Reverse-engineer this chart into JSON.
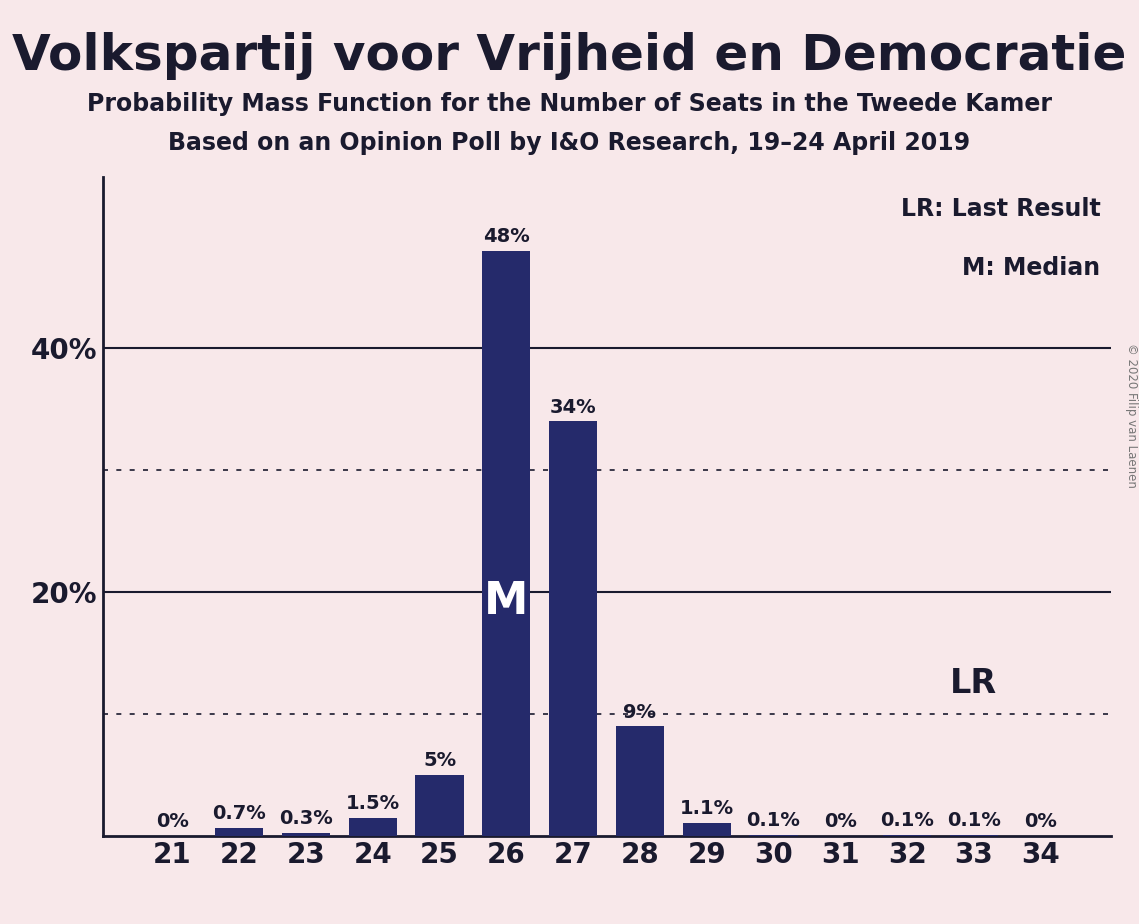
{
  "title": "Volkspartij voor Vrijheid en Democratie",
  "subtitle1": "Probability Mass Function for the Number of Seats in the Tweede Kamer",
  "subtitle2": "Based on an Opinion Poll by I&O Research, 19–24 April 2019",
  "copyright": "© 2020 Filip van Laenen",
  "categories": [
    21,
    22,
    23,
    24,
    25,
    26,
    27,
    28,
    29,
    30,
    31,
    32,
    33,
    34
  ],
  "values": [
    0.0,
    0.7,
    0.3,
    1.5,
    5.0,
    48.0,
    34.0,
    9.0,
    1.1,
    0.1,
    0.0,
    0.1,
    0.1,
    0.0
  ],
  "labels": [
    "0%",
    "0.7%",
    "0.3%",
    "1.5%",
    "5%",
    "48%",
    "34%",
    "9%",
    "1.1%",
    "0.1%",
    "0%",
    "0.1%",
    "0.1%",
    "0%"
  ],
  "bar_color": "#252a6b",
  "background_color": "#f8e8ea",
  "title_color": "#1a1a2e",
  "label_color": "#1a1a2e",
  "median_seat": 26,
  "lr_seat": 33,
  "ylim": [
    0,
    54
  ],
  "solid_yticks": [
    20,
    40
  ],
  "dotted_yticks": [
    10,
    30
  ],
  "ytick_labels_vals": [
    20,
    40
  ],
  "ytick_labels_strs": [
    "20%",
    "40%"
  ],
  "legend_text1": "LR: Last Result",
  "legend_text2": "M: Median",
  "lr_label": "LR",
  "median_label": "M",
  "title_fontsize": 36,
  "subtitle_fontsize": 17,
  "label_fontsize": 14,
  "tick_fontsize": 20,
  "legend_fontsize": 17,
  "median_fontsize": 32,
  "lr_fontsize": 24
}
